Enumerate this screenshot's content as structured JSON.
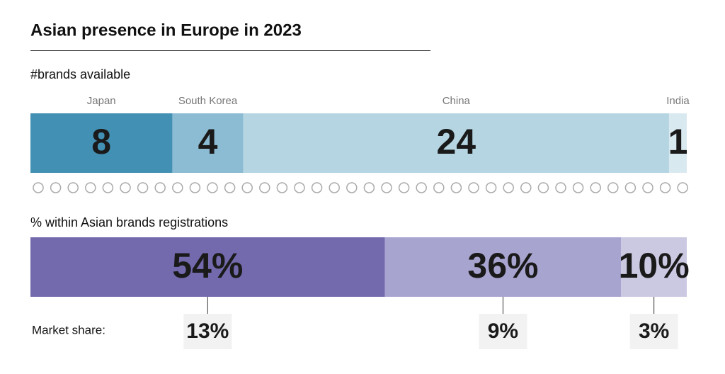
{
  "title": "Asian presence in Europe in 2023",
  "chart_data": [
    {
      "type": "stacked-bar",
      "title": "#brands available",
      "categories": [
        "Japan",
        "South Korea",
        "China",
        "India"
      ],
      "values": [
        8,
        4,
        24,
        1
      ],
      "colors": [
        "#4390b5",
        "#8bbcd3",
        "#b4d5e1",
        "#d9e9f0"
      ]
    },
    {
      "type": "stacked-bar",
      "title": "% within Asian brands registrations",
      "values": [
        54,
        36,
        10
      ],
      "value_labels": [
        "54%",
        "36%",
        "10%"
      ],
      "colors": [
        "#736aae",
        "#a8a4d0",
        "#cbc8e2"
      ],
      "annotation_title": "Market share:",
      "annotations": [
        13,
        9,
        3
      ],
      "annotation_labels": [
        "13%",
        "9%",
        "3%"
      ]
    }
  ]
}
